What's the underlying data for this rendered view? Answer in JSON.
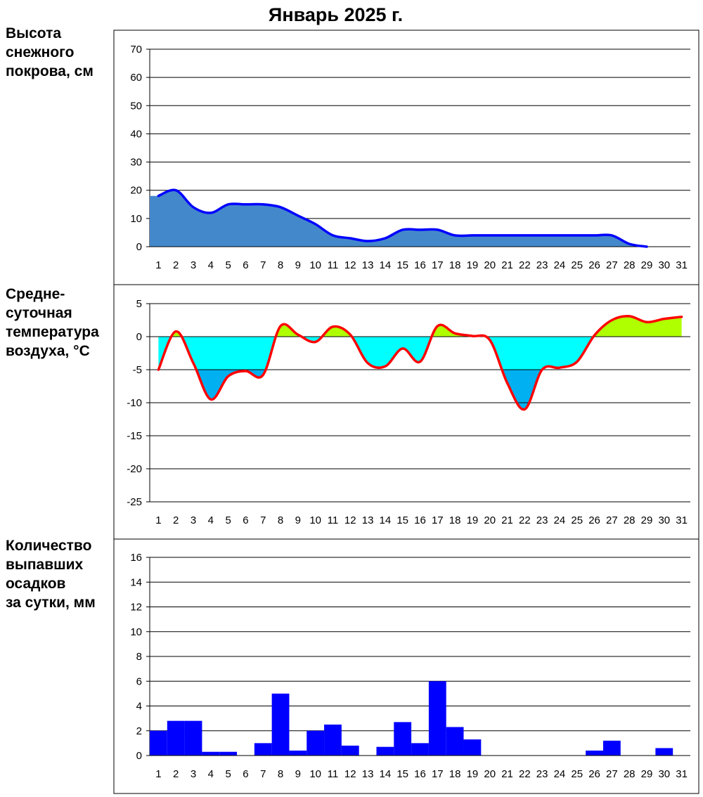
{
  "title": "Январь 2025 г.",
  "chart_data": [
    {
      "type": "area",
      "id": "snow",
      "label_lines": [
        "Высота",
        "снежного",
        "покрова, см"
      ],
      "x": [
        1,
        2,
        3,
        4,
        5,
        6,
        7,
        8,
        9,
        10,
        11,
        12,
        13,
        14,
        15,
        16,
        17,
        18,
        19,
        20,
        21,
        22,
        23,
        24,
        25,
        26,
        27,
        28,
        29,
        30,
        31
      ],
      "values": [
        18,
        20,
        14,
        12,
        15,
        15,
        15,
        14,
        11,
        8,
        4,
        3,
        2,
        3,
        6,
        6,
        6,
        4,
        4,
        4,
        4,
        4,
        4,
        4,
        4,
        4,
        4,
        1,
        0,
        null,
        null
      ],
      "ylim": [
        0,
        70
      ],
      "yticks": [
        0,
        10,
        20,
        30,
        40,
        50,
        60,
        70
      ],
      "xlabel": "",
      "ylabel": "",
      "colors": {
        "fill": "#4488cc",
        "line": "#0000ff"
      },
      "grid": true
    },
    {
      "type": "area",
      "id": "temperature",
      "label_lines": [
        "Средне-",
        "суточная",
        "температура",
        "воздуха, °C"
      ],
      "x": [
        1,
        2,
        3,
        4,
        5,
        6,
        7,
        8,
        9,
        10,
        11,
        12,
        13,
        14,
        15,
        16,
        17,
        18,
        19,
        20,
        21,
        22,
        23,
        24,
        25,
        26,
        27,
        28,
        29,
        30,
        31
      ],
      "values": [
        -5,
        0.8,
        -4,
        -9.5,
        -6,
        -5.2,
        -5.8,
        1.6,
        0.3,
        -0.8,
        1.5,
        0.3,
        -4,
        -4.5,
        -1.8,
        -3.8,
        1.6,
        0.5,
        0.1,
        -0.5,
        -7,
        -11,
        -5,
        -4.7,
        -3.8,
        0.2,
        2.5,
        3.1,
        2.2,
        2.7,
        3.0
      ],
      "ylim": [
        -25,
        5
      ],
      "yticks": [
        -25,
        -20,
        -15,
        -10,
        -5,
        0,
        5
      ],
      "xlabel": "",
      "ylabel": "",
      "colors": {
        "line": "#ff0000",
        "warm": "#b0ff00",
        "cold": "#00ffff",
        "very_cold": "#00b0f0"
      },
      "grid": true
    },
    {
      "type": "bar",
      "id": "precipitation",
      "label_lines": [
        "Количество",
        "выпавших",
        "осадков",
        "за сутки, мм"
      ],
      "categories": [
        "1",
        "2",
        "3",
        "4",
        "5",
        "6",
        "7",
        "8",
        "9",
        "10",
        "11",
        "12",
        "13",
        "14",
        "15",
        "16",
        "17",
        "18",
        "19",
        "20",
        "21",
        "22",
        "23",
        "24",
        "25",
        "26",
        "27",
        "28",
        "29",
        "30",
        "31"
      ],
      "values": [
        2.0,
        2.8,
        2.8,
        0.3,
        0.3,
        0,
        1.0,
        5.0,
        0.4,
        2.0,
        2.5,
        0.8,
        0,
        0.7,
        2.7,
        1.0,
        6.0,
        2.3,
        1.3,
        0,
        0,
        0,
        0,
        0,
        0,
        0.4,
        1.2,
        0,
        0,
        0.6,
        0
      ],
      "ylim": [
        0,
        16
      ],
      "yticks": [
        0,
        2,
        4,
        6,
        8,
        10,
        12,
        14,
        16
      ],
      "xlabel": "",
      "ylabel": "",
      "colors": {
        "bar": "#0000ff"
      },
      "grid": true
    }
  ]
}
